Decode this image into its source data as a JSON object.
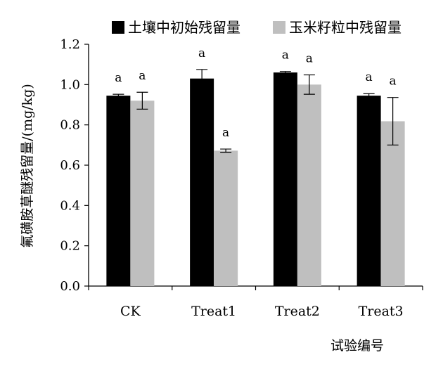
{
  "chart_data": {
    "type": "bar",
    "categories": [
      "CK",
      "Treat1",
      "Treat2",
      "Treat3"
    ],
    "series": [
      {
        "name": "土壤中初始残留量",
        "color": "#000000",
        "values": [
          0.945,
          1.03,
          1.06,
          0.945
        ],
        "errors": [
          0.007,
          0.045,
          0.005,
          0.01
        ],
        "significance": [
          "a",
          "a",
          "a",
          "a"
        ]
      },
      {
        "name": "玉米籽粒中残留量",
        "color": "#bfbfbf",
        "values": [
          0.92,
          0.672,
          1.0,
          0.818
        ],
        "errors": [
          0.042,
          0.008,
          0.048,
          0.118
        ],
        "significance": [
          "a",
          "a",
          "a",
          "a"
        ]
      }
    ],
    "xlabel": "试验编号",
    "ylabel": "氟磺胺草醚残留量/(mg/kg)",
    "ylim": [
      0,
      1.2
    ],
    "yticks": [
      "0.0",
      "0.2",
      "0.4",
      "0.6",
      "0.8",
      "1.0",
      "1.2"
    ],
    "legend_position": "top",
    "grid": false
  }
}
